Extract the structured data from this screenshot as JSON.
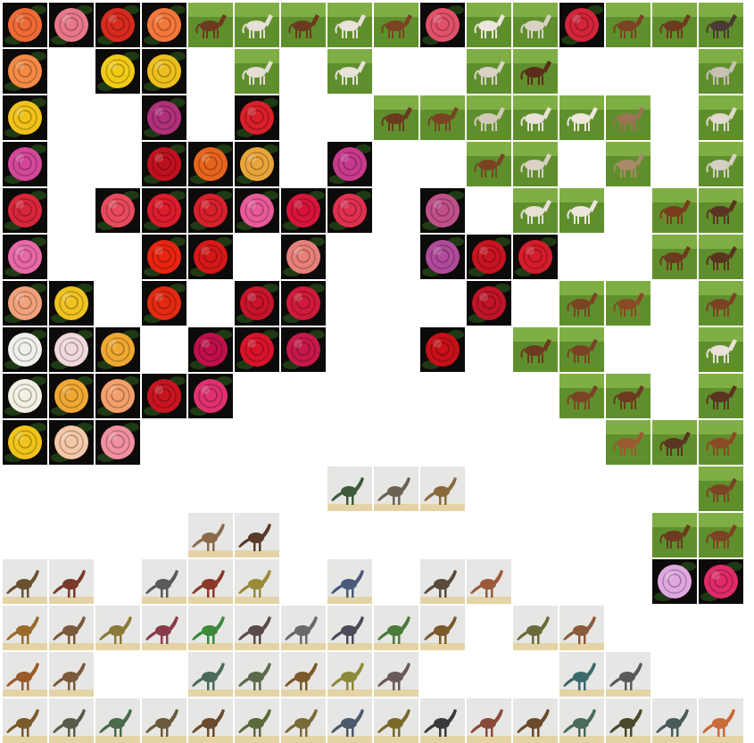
{
  "grid": {
    "columns": 16,
    "rows": 16,
    "background": "#ffffff"
  },
  "palette": {
    "rose": {
      "bg": "#0d0a0a",
      "accent": "#1e3a14"
    },
    "horse": {
      "bg": "#5f8f2c",
      "sky": "#7fae45"
    },
    "dino": {
      "bg": "#e6e6e4",
      "ground": "#e4d3a4"
    }
  },
  "tiles": [
    {
      "row": 0,
      "col": 0,
      "kind": "rose",
      "color": "#f06a35"
    },
    {
      "row": 0,
      "col": 1,
      "kind": "rose",
      "color": "#e9778a"
    },
    {
      "row": 0,
      "col": 2,
      "kind": "rose",
      "color": "#d82a1e"
    },
    {
      "row": 0,
      "col": 3,
      "kind": "rose",
      "color": "#f4773a"
    },
    {
      "row": 0,
      "col": 4,
      "kind": "horse",
      "color": "#6b3a1f"
    },
    {
      "row": 0,
      "col": 5,
      "kind": "horse",
      "color": "#e6e0d6"
    },
    {
      "row": 0,
      "col": 6,
      "kind": "horse",
      "color": "#6b3a1f"
    },
    {
      "row": 0,
      "col": 7,
      "kind": "horse",
      "color": "#e8e2d8"
    },
    {
      "row": 0,
      "col": 8,
      "kind": "horse",
      "color": "#7a4424"
    },
    {
      "row": 0,
      "col": 9,
      "kind": "rose",
      "color": "#e2506a"
    },
    {
      "row": 0,
      "col": 10,
      "kind": "horse",
      "color": "#ece6dc"
    },
    {
      "row": 0,
      "col": 11,
      "kind": "horse",
      "color": "#d9d2c4"
    },
    {
      "row": 0,
      "col": 12,
      "kind": "rose",
      "color": "#d4243a"
    },
    {
      "row": 0,
      "col": 13,
      "kind": "horse",
      "color": "#7a4424"
    },
    {
      "row": 0,
      "col": 14,
      "kind": "horse",
      "color": "#6b3a1f"
    },
    {
      "row": 0,
      "col": 15,
      "kind": "horse",
      "color": "#4a3a33"
    },
    {
      "row": 1,
      "col": 0,
      "kind": "rose",
      "color": "#f48a45"
    },
    {
      "row": 1,
      "col": 2,
      "kind": "rose",
      "color": "#f2cb16"
    },
    {
      "row": 1,
      "col": 3,
      "kind": "rose",
      "color": "#ecbf1d"
    },
    {
      "row": 1,
      "col": 5,
      "kind": "horse",
      "color": "#e4ddd3"
    },
    {
      "row": 1,
      "col": 7,
      "kind": "horse",
      "color": "#e8e2d8"
    },
    {
      "row": 1,
      "col": 10,
      "kind": "horse",
      "color": "#d9d2c4"
    },
    {
      "row": 1,
      "col": 11,
      "kind": "horse",
      "color": "#5a2e1a"
    },
    {
      "row": 1,
      "col": 15,
      "kind": "horse",
      "color": "#c8c0b2"
    },
    {
      "row": 2,
      "col": 0,
      "kind": "rose",
      "color": "#f1c21a"
    },
    {
      "row": 2,
      "col": 3,
      "kind": "rose",
      "color": "#b0307a"
    },
    {
      "row": 2,
      "col": 5,
      "kind": "rose",
      "color": "#d81f2a"
    },
    {
      "row": 2,
      "col": 8,
      "kind": "horse",
      "color": "#6b3a1f"
    },
    {
      "row": 2,
      "col": 9,
      "kind": "horse",
      "color": "#7a4424"
    },
    {
      "row": 2,
      "col": 10,
      "kind": "horse",
      "color": "#d2c9ba"
    },
    {
      "row": 2,
      "col": 11,
      "kind": "horse",
      "color": "#e8e2d8"
    },
    {
      "row": 2,
      "col": 12,
      "kind": "horse",
      "color": "#ece6dc"
    },
    {
      "row": 2,
      "col": 13,
      "kind": "horse",
      "color": "#9c7354"
    },
    {
      "row": 2,
      "col": 15,
      "kind": "horse",
      "color": "#e0d9cd"
    },
    {
      "row": 3,
      "col": 0,
      "kind": "rose",
      "color": "#d3479a"
    },
    {
      "row": 3,
      "col": 3,
      "kind": "rose",
      "color": "#c0101e"
    },
    {
      "row": 3,
      "col": 4,
      "kind": "rose",
      "color": "#e8641d"
    },
    {
      "row": 3,
      "col": 5,
      "kind": "rose",
      "color": "#eaa53a"
    },
    {
      "row": 3,
      "col": 7,
      "kind": "rose",
      "color": "#c83a8e"
    },
    {
      "row": 3,
      "col": 10,
      "kind": "horse",
      "color": "#7a4424"
    },
    {
      "row": 3,
      "col": 11,
      "kind": "horse",
      "color": "#d9d2c4"
    },
    {
      "row": 3,
      "col": 13,
      "kind": "horse",
      "color": "#a88a6a"
    },
    {
      "row": 3,
      "col": 15,
      "kind": "horse",
      "color": "#d6cfc3"
    },
    {
      "row": 4,
      "col": 0,
      "kind": "rose",
      "color": "#d8263a"
    },
    {
      "row": 4,
      "col": 2,
      "kind": "rose",
      "color": "#e84a5c"
    },
    {
      "row": 4,
      "col": 3,
      "kind": "rose",
      "color": "#dc1c2c"
    },
    {
      "row": 4,
      "col": 4,
      "kind": "rose",
      "color": "#d8202c"
    },
    {
      "row": 4,
      "col": 5,
      "kind": "rose",
      "color": "#e85a9a"
    },
    {
      "row": 4,
      "col": 6,
      "kind": "rose",
      "color": "#d8143a"
    },
    {
      "row": 4,
      "col": 7,
      "kind": "rose",
      "color": "#e03050"
    },
    {
      "row": 4,
      "col": 9,
      "kind": "rose",
      "color": "#c0508a"
    },
    {
      "row": 4,
      "col": 11,
      "kind": "horse",
      "color": "#e6e0d6"
    },
    {
      "row": 4,
      "col": 12,
      "kind": "horse",
      "color": "#ece6dc"
    },
    {
      "row": 4,
      "col": 14,
      "kind": "horse",
      "color": "#7a3a1c"
    },
    {
      "row": 4,
      "col": 15,
      "kind": "horse",
      "color": "#5a3420"
    },
    {
      "row": 5,
      "col": 0,
      "kind": "rose",
      "color": "#e868a8"
    },
    {
      "row": 5,
      "col": 3,
      "kind": "rose",
      "color": "#e82410"
    },
    {
      "row": 5,
      "col": 4,
      "kind": "rose",
      "color": "#d61818"
    },
    {
      "row": 5,
      "col": 6,
      "kind": "rose",
      "color": "#e8807a"
    },
    {
      "row": 5,
      "col": 9,
      "kind": "rose",
      "color": "#b04a9a"
    },
    {
      "row": 5,
      "col": 10,
      "kind": "rose",
      "color": "#c81420"
    },
    {
      "row": 5,
      "col": 11,
      "kind": "rose",
      "color": "#d41c2a"
    },
    {
      "row": 5,
      "col": 14,
      "kind": "horse",
      "color": "#6b3a1f"
    },
    {
      "row": 5,
      "col": 15,
      "kind": "horse",
      "color": "#5a3420"
    },
    {
      "row": 6,
      "col": 0,
      "kind": "rose",
      "color": "#f2a27a"
    },
    {
      "row": 6,
      "col": 1,
      "kind": "rose",
      "color": "#f0c320"
    },
    {
      "row": 6,
      "col": 3,
      "kind": "rose",
      "color": "#e42a12"
    },
    {
      "row": 6,
      "col": 5,
      "kind": "rose",
      "color": "#c8142a"
    },
    {
      "row": 6,
      "col": 6,
      "kind": "rose",
      "color": "#d01a3a"
    },
    {
      "row": 6,
      "col": 10,
      "kind": "rose",
      "color": "#c01428"
    },
    {
      "row": 6,
      "col": 12,
      "kind": "horse",
      "color": "#7a4424"
    },
    {
      "row": 6,
      "col": 13,
      "kind": "horse",
      "color": "#8a4a24"
    },
    {
      "row": 6,
      "col": 15,
      "kind": "horse",
      "color": "#7a4424"
    },
    {
      "row": 7,
      "col": 0,
      "kind": "rose",
      "color": "#f2f0ea"
    },
    {
      "row": 7,
      "col": 1,
      "kind": "rose",
      "color": "#f0d8dc"
    },
    {
      "row": 7,
      "col": 2,
      "kind": "rose",
      "color": "#f0a830"
    },
    {
      "row": 7,
      "col": 4,
      "kind": "rose",
      "color": "#c0104a"
    },
    {
      "row": 7,
      "col": 5,
      "kind": "rose",
      "color": "#d8142a"
    },
    {
      "row": 7,
      "col": 6,
      "kind": "rose",
      "color": "#c8184a"
    },
    {
      "row": 7,
      "col": 9,
      "kind": "rose",
      "color": "#c81018"
    },
    {
      "row": 7,
      "col": 11,
      "kind": "horse",
      "color": "#6b3a1f"
    },
    {
      "row": 7,
      "col": 12,
      "kind": "horse",
      "color": "#7a4424"
    },
    {
      "row": 7,
      "col": 15,
      "kind": "horse",
      "color": "#e8e2d8"
    },
    {
      "row": 8,
      "col": 0,
      "kind": "rose",
      "color": "#f4f0e4"
    },
    {
      "row": 8,
      "col": 1,
      "kind": "rose",
      "color": "#f0a832"
    },
    {
      "row": 8,
      "col": 2,
      "kind": "rose",
      "color": "#f4a06a"
    },
    {
      "row": 8,
      "col": 3,
      "kind": "rose",
      "color": "#c81420"
    },
    {
      "row": 8,
      "col": 4,
      "kind": "rose",
      "color": "#e03070"
    },
    {
      "row": 8,
      "col": 12,
      "kind": "horse",
      "color": "#7a4424"
    },
    {
      "row": 8,
      "col": 13,
      "kind": "horse",
      "color": "#6b3a1f"
    },
    {
      "row": 8,
      "col": 15,
      "kind": "horse",
      "color": "#5a3420"
    },
    {
      "row": 9,
      "col": 0,
      "kind": "rose",
      "color": "#f0c41a"
    },
    {
      "row": 9,
      "col": 1,
      "kind": "rose",
      "color": "#f4c8a8"
    },
    {
      "row": 9,
      "col": 2,
      "kind": "rose",
      "color": "#f090a0"
    },
    {
      "row": 9,
      "col": 13,
      "kind": "horse",
      "color": "#9a5a30"
    },
    {
      "row": 9,
      "col": 14,
      "kind": "horse",
      "color": "#5a3420"
    },
    {
      "row": 9,
      "col": 15,
      "kind": "horse",
      "color": "#8a4a24"
    },
    {
      "row": 10,
      "col": 7,
      "kind": "dino",
      "color": "#3c5a3a"
    },
    {
      "row": 10,
      "col": 8,
      "kind": "dino",
      "color": "#6a6254"
    },
    {
      "row": 10,
      "col": 9,
      "kind": "dino",
      "color": "#8a6a3a"
    },
    {
      "row": 10,
      "col": 15,
      "kind": "horse",
      "color": "#7a4424"
    },
    {
      "row": 11,
      "col": 4,
      "kind": "dino",
      "color": "#8a6a4a"
    },
    {
      "row": 11,
      "col": 5,
      "kind": "dino",
      "color": "#5a3a2a"
    },
    {
      "row": 11,
      "col": 14,
      "kind": "horse",
      "color": "#6b3a1f"
    },
    {
      "row": 11,
      "col": 15,
      "kind": "horse",
      "color": "#7a4424"
    },
    {
      "row": 12,
      "col": 0,
      "kind": "dino",
      "color": "#6a5230"
    },
    {
      "row": 12,
      "col": 1,
      "kind": "dino",
      "color": "#7a3a2a"
    },
    {
      "row": 12,
      "col": 3,
      "kind": "dino",
      "color": "#5a5a5a"
    },
    {
      "row": 12,
      "col": 4,
      "kind": "dino",
      "color": "#8a3a2a"
    },
    {
      "row": 12,
      "col": 5,
      "kind": "dino",
      "color": "#9a8a3a"
    },
    {
      "row": 12,
      "col": 7,
      "kind": "dino",
      "color": "#4a5a7a"
    },
    {
      "row": 12,
      "col": 9,
      "kind": "dino",
      "color": "#5a4a3a"
    },
    {
      "row": 12,
      "col": 10,
      "kind": "dino",
      "color": "#9a5a3a"
    },
    {
      "row": 12,
      "col": 14,
      "kind": "rose",
      "color": "#e0a8e0"
    },
    {
      "row": 12,
      "col": 15,
      "kind": "rose",
      "color": "#e02a6a"
    },
    {
      "row": 13,
      "col": 0,
      "kind": "dino",
      "color": "#9a6a2a"
    },
    {
      "row": 13,
      "col": 1,
      "kind": "dino",
      "color": "#7a5a3a"
    },
    {
      "row": 13,
      "col": 2,
      "kind": "dino",
      "color": "#8a7a3a"
    },
    {
      "row": 13,
      "col": 3,
      "kind": "dino",
      "color": "#8a3a4a"
    },
    {
      "row": 13,
      "col": 4,
      "kind": "dino",
      "color": "#3a8a3a"
    },
    {
      "row": 13,
      "col": 5,
      "kind": "dino",
      "color": "#5a4a4a"
    },
    {
      "row": 13,
      "col": 6,
      "kind": "dino",
      "color": "#6a6a6a"
    },
    {
      "row": 13,
      "col": 7,
      "kind": "dino",
      "color": "#4a4a5a"
    },
    {
      "row": 13,
      "col": 8,
      "kind": "dino",
      "color": "#4a7a3a"
    },
    {
      "row": 13,
      "col": 9,
      "kind": "dino",
      "color": "#7a5a2a"
    },
    {
      "row": 13,
      "col": 11,
      "kind": "dino",
      "color": "#6a6a3a"
    },
    {
      "row": 13,
      "col": 12,
      "kind": "dino",
      "color": "#8a5a3a"
    },
    {
      "row": 14,
      "col": 0,
      "kind": "dino",
      "color": "#9a5a2a"
    },
    {
      "row": 14,
      "col": 1,
      "kind": "dino",
      "color": "#7a5a3a"
    },
    {
      "row": 14,
      "col": 4,
      "kind": "dino",
      "color": "#4a6a5a"
    },
    {
      "row": 14,
      "col": 5,
      "kind": "dino",
      "color": "#5a6a4a"
    },
    {
      "row": 14,
      "col": 6,
      "kind": "dino",
      "color": "#7a5a2a"
    },
    {
      "row": 14,
      "col": 7,
      "kind": "dino",
      "color": "#8a8a3a"
    },
    {
      "row": 14,
      "col": 8,
      "kind": "dino",
      "color": "#6a5a5a"
    },
    {
      "row": 14,
      "col": 12,
      "kind": "dino",
      "color": "#3a6a6a"
    },
    {
      "row": 14,
      "col": 13,
      "kind": "dino",
      "color": "#5a5a5a"
    },
    {
      "row": 15,
      "col": 0,
      "kind": "dino",
      "color": "#7a5a2a"
    },
    {
      "row": 15,
      "col": 1,
      "kind": "dino",
      "color": "#5a5a4a"
    },
    {
      "row": 15,
      "col": 2,
      "kind": "dino",
      "color": "#4a6a4a"
    },
    {
      "row": 15,
      "col": 3,
      "kind": "dino",
      "color": "#6a5a3a"
    },
    {
      "row": 15,
      "col": 4,
      "kind": "dino",
      "color": "#6a4a2a"
    },
    {
      "row": 15,
      "col": 5,
      "kind": "dino",
      "color": "#5a6a3a"
    },
    {
      "row": 15,
      "col": 6,
      "kind": "dino",
      "color": "#7a6a3a"
    },
    {
      "row": 15,
      "col": 7,
      "kind": "dino",
      "color": "#4a5a6a"
    },
    {
      "row": 15,
      "col": 8,
      "kind": "dino",
      "color": "#7a6a2a"
    },
    {
      "row": 15,
      "col": 9,
      "kind": "dino",
      "color": "#3a3a3a"
    },
    {
      "row": 15,
      "col": 10,
      "kind": "dino",
      "color": "#8a4a3a"
    },
    {
      "row": 15,
      "col": 11,
      "kind": "dino",
      "color": "#6a4a2a"
    },
    {
      "row": 15,
      "col": 12,
      "kind": "dino",
      "color": "#4a6a5a"
    },
    {
      "row": 15,
      "col": 13,
      "kind": "dino",
      "color": "#4a4a2a"
    },
    {
      "row": 15,
      "col": 14,
      "kind": "dino",
      "color": "#4a5a5a"
    },
    {
      "row": 15,
      "col": 15,
      "kind": "dino",
      "color": "#c86a3a"
    }
  ]
}
